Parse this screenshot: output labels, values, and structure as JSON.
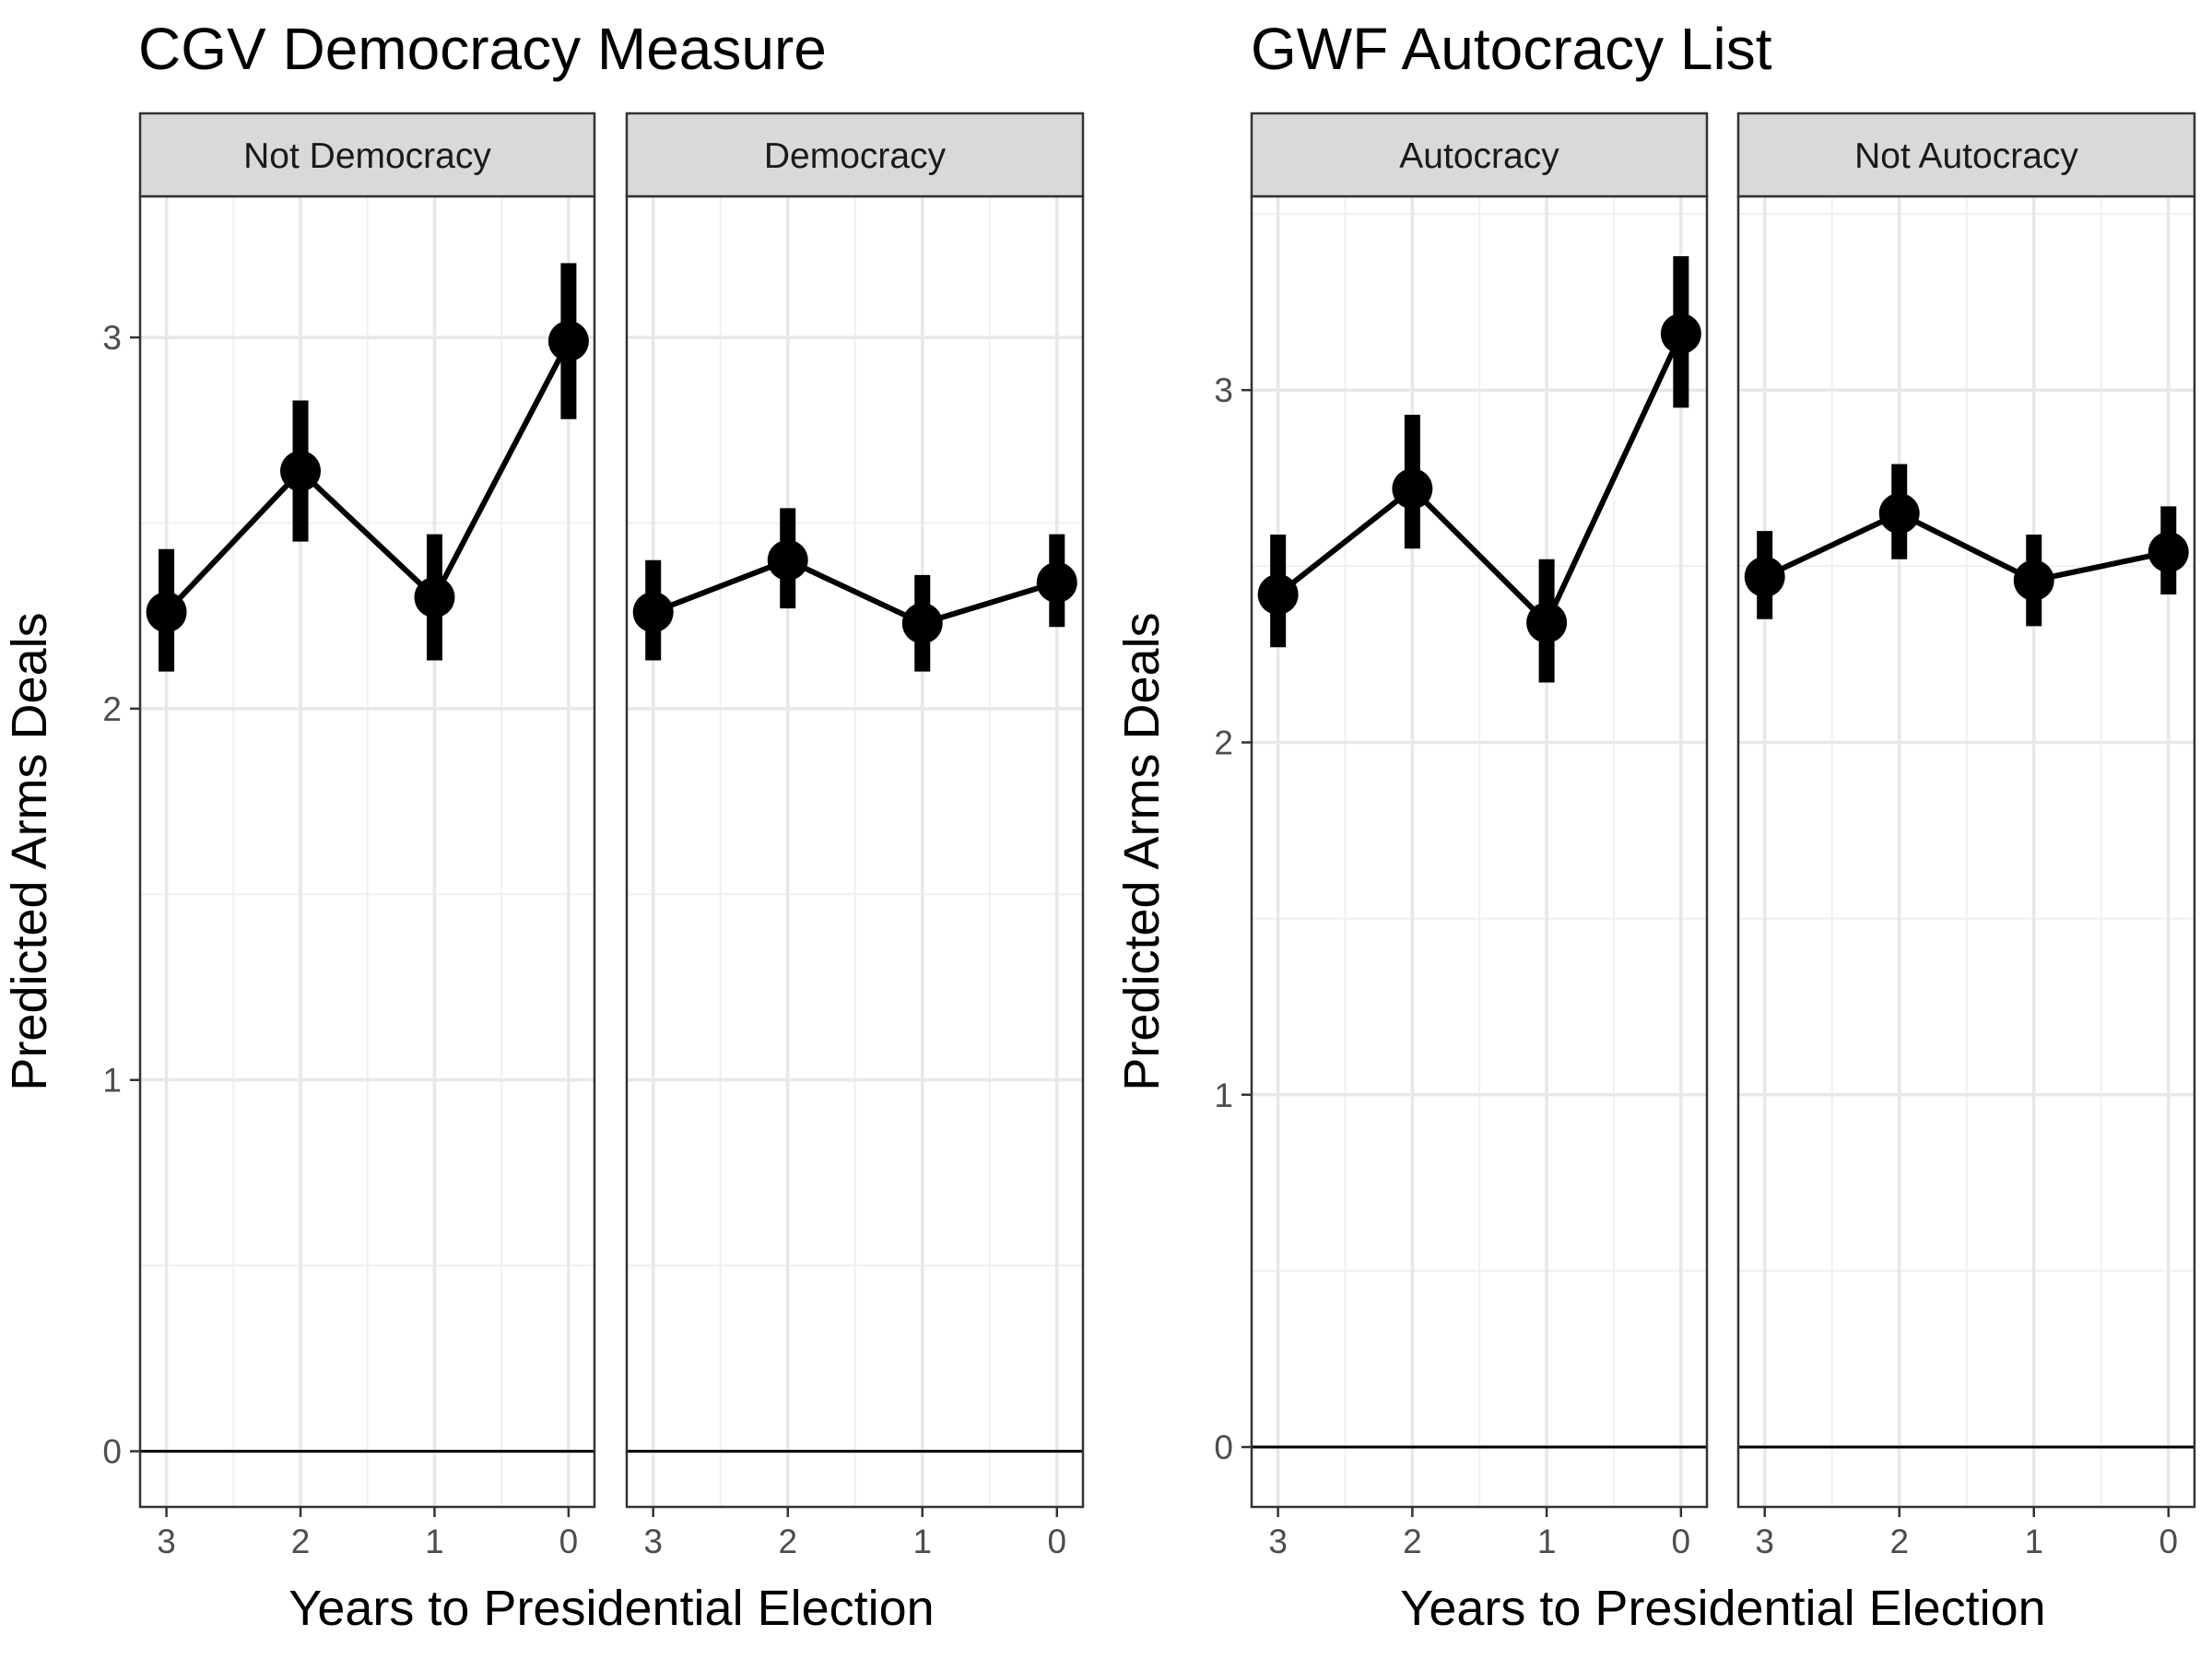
{
  "chart_data": [
    {
      "type": "line",
      "title": "CGV Democracy Measure",
      "xlabel": "Years to Presidential Election",
      "ylabel": "Predicted Arms Deals",
      "x": [
        3,
        2,
        1,
        0
      ],
      "x_tick_labels": [
        "3",
        "2",
        "1",
        "0"
      ],
      "y_ticks": [
        "0",
        "1",
        "2",
        "3"
      ],
      "ylim": [
        -0.15,
        3.38
      ],
      "grid": true,
      "reference_line_y": 0,
      "error_bars": true,
      "facets": [
        {
          "label": "Not Democracy",
          "values": [
            2.26,
            2.64,
            2.3,
            2.99
          ],
          "lower": [
            2.1,
            2.45,
            2.13,
            2.78
          ],
          "upper": [
            2.43,
            2.83,
            2.47,
            3.2
          ]
        },
        {
          "label": "Democracy",
          "values": [
            2.26,
            2.4,
            2.23,
            2.34
          ],
          "lower": [
            2.13,
            2.27,
            2.1,
            2.22
          ],
          "upper": [
            2.4,
            2.54,
            2.36,
            2.47
          ]
        }
      ]
    },
    {
      "type": "line",
      "title": "GWF Autocracy List",
      "xlabel": "Years to Presidential Election",
      "ylabel": "Predicted Arms Deals",
      "x": [
        3,
        2,
        1,
        0
      ],
      "x_tick_labels": [
        "3",
        "2",
        "1",
        "0"
      ],
      "y_ticks": [
        "0",
        "1",
        "2",
        "3"
      ],
      "ylim": [
        -0.17,
        3.55
      ],
      "grid": true,
      "reference_line_y": 0,
      "error_bars": true,
      "facets": [
        {
          "label": "Autocracy",
          "values": [
            2.42,
            2.72,
            2.34,
            3.16
          ],
          "lower": [
            2.27,
            2.55,
            2.17,
            2.95
          ],
          "upper": [
            2.59,
            2.93,
            2.52,
            3.38
          ]
        },
        {
          "label": "Not Autocracy",
          "values": [
            2.47,
            2.65,
            2.46,
            2.54
          ],
          "lower": [
            2.35,
            2.52,
            2.33,
            2.42
          ],
          "upper": [
            2.6,
            2.79,
            2.59,
            2.67
          ]
        }
      ]
    }
  ]
}
